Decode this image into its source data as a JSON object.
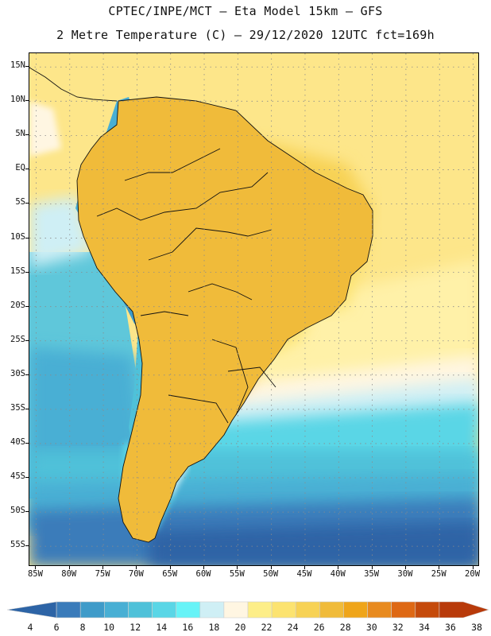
{
  "header": {
    "line1": "CPTEC/INPE/MCT –  Eta Model 15km – GFS",
    "line2": "2 Metre Temperature (C) – 29/12/2020 12UTC fct=169h"
  },
  "map": {
    "variable": "2 Metre Temperature",
    "units": "C",
    "lat_labels": [
      "15N",
      "10N",
      "5N",
      "EQ",
      "5S",
      "10S",
      "15S",
      "20S",
      "25S",
      "30S",
      "35S",
      "40S",
      "45S",
      "50S",
      "55S"
    ],
    "lon_labels": [
      "85W",
      "80W",
      "75W",
      "70W",
      "65W",
      "60W",
      "55W",
      "50W",
      "45W",
      "40W",
      "35W",
      "30W",
      "25W",
      "20W"
    ],
    "lat_range": [
      17,
      -58
    ],
    "lon_range": [
      -86,
      -19
    ]
  },
  "colorbar": {
    "labels": [
      "4",
      "6",
      "8",
      "10",
      "12",
      "14",
      "16",
      "18",
      "20",
      "22",
      "24",
      "26",
      "28",
      "30",
      "32",
      "34",
      "36",
      "38"
    ],
    "colors": [
      "#2d64a6",
      "#3a7bba",
      "#3f9bc9",
      "#48afd4",
      "#4fc1d9",
      "#5ad6e6",
      "#67f3f7",
      "#cfeff5",
      "#fff6e2",
      "#fdee88",
      "#fce370",
      "#f7d255",
      "#f0bb3a",
      "#efa51a",
      "#e88a1f",
      "#de6814",
      "#c54a0b",
      "#b83a0a"
    ]
  }
}
